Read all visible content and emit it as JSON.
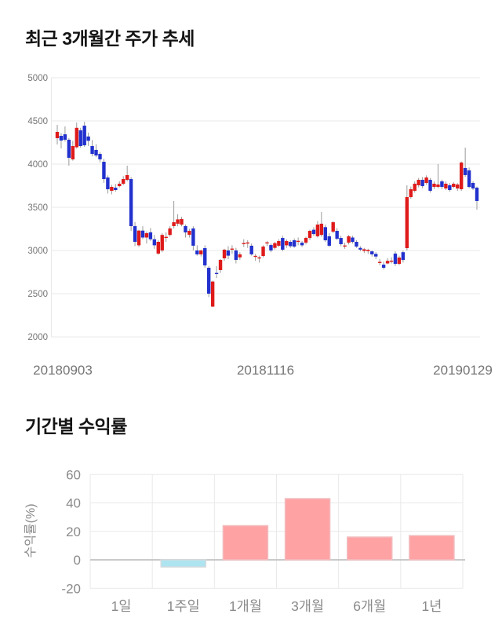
{
  "page": {
    "background": "#ffffff"
  },
  "chart_data": [
    {
      "type": "candlestick",
      "title": "최근 3개월간 주가 추세",
      "x_axis_labels": [
        "20180903",
        "20181116",
        "20190129"
      ],
      "y_ticks": [
        5000,
        4500,
        4000,
        3500,
        3000,
        2500,
        2000
      ],
      "ylim": [
        2000,
        5000
      ],
      "grid": true,
      "legend": "none",
      "colors": {
        "up": "#df1a1a",
        "down": "#2231cd",
        "wick": "#9a9a9a",
        "grid": "#e9e9e9",
        "axis_text": "#757575"
      },
      "candles_ohlc": [
        [
          4300,
          4455,
          4227,
          4373
        ],
        [
          4327,
          4360,
          4182,
          4273
        ],
        [
          4345,
          4436,
          4260,
          4282
        ],
        [
          4282,
          4300,
          3982,
          4073
        ],
        [
          4055,
          4270,
          4040,
          4209
        ],
        [
          4195,
          4482,
          4180,
          4420
        ],
        [
          4391,
          4420,
          4190,
          4209
        ],
        [
          4445,
          4490,
          4200,
          4218
        ],
        [
          4320,
          4365,
          4210,
          4270
        ],
        [
          4209,
          4280,
          4090,
          4118
        ],
        [
          4164,
          4230,
          4080,
          4100
        ],
        [
          4118,
          4140,
          4020,
          4055
        ],
        [
          4027,
          4060,
          3782,
          3827
        ],
        [
          3845,
          3870,
          3660,
          3709
        ],
        [
          3691,
          3760,
          3650,
          3736
        ],
        [
          3727,
          3770,
          3680,
          3700
        ],
        [
          3745,
          3800,
          3730,
          3773
        ],
        [
          3773,
          3860,
          3755,
          3827
        ],
        [
          3818,
          3982,
          3800,
          3873
        ],
        [
          3827,
          3850,
          3227,
          3282
        ],
        [
          3282,
          3330,
          3050,
          3100
        ],
        [
          3060,
          3240,
          3040,
          3230
        ],
        [
          3230,
          3280,
          3130,
          3150
        ],
        [
          3150,
          3220,
          3080,
          3200
        ],
        [
          3210,
          3260,
          3110,
          3130
        ],
        [
          3130,
          3180,
          3020,
          3060
        ],
        [
          2964,
          3120,
          2950,
          3100
        ],
        [
          3000,
          3200,
          2980,
          3180
        ],
        [
          3150,
          3210,
          3100,
          3158
        ],
        [
          3180,
          3280,
          3160,
          3255
        ],
        [
          3282,
          3573,
          3255,
          3327
        ],
        [
          3310,
          3420,
          3280,
          3360
        ],
        [
          3300,
          3390,
          3280,
          3364
        ],
        [
          3282,
          3300,
          3150,
          3209
        ],
        [
          3182,
          3250,
          3150,
          3227
        ],
        [
          3255,
          3280,
          3000,
          3055
        ],
        [
          3000,
          3060,
          2940,
          2955
        ],
        [
          2955,
          3010,
          2930,
          3000
        ],
        [
          3027,
          3060,
          2800,
          2827
        ],
        [
          2800,
          2820,
          2460,
          2500
        ],
        [
          2350,
          2650,
          2345,
          2640
        ],
        [
          2740,
          2820,
          2680,
          2732
        ],
        [
          2773,
          2900,
          2740,
          2891
        ],
        [
          2909,
          3020,
          2880,
          3009
        ],
        [
          3000,
          3050,
          2900,
          2940
        ],
        [
          3014,
          3060,
          2960,
          3022
        ],
        [
          3000,
          3030,
          2850,
          2891
        ],
        [
          2920,
          2980,
          2890,
          2955
        ],
        [
          3078,
          3130,
          3040,
          3086
        ],
        [
          3085,
          3120,
          3030,
          3093
        ],
        [
          3055,
          3080,
          2940,
          2955
        ],
        [
          2930,
          2960,
          2880,
          2938
        ],
        [
          2914,
          2940,
          2860,
          2920
        ],
        [
          2936,
          3060,
          2920,
          3045
        ],
        [
          3086,
          3110,
          3050,
          3094
        ],
        [
          3063,
          3080,
          2980,
          3000
        ],
        [
          3030,
          3100,
          3010,
          3085
        ],
        [
          3055,
          3130,
          3040,
          3109
        ],
        [
          3145,
          3170,
          2990,
          3009
        ],
        [
          3060,
          3130,
          3030,
          3110
        ],
        [
          3100,
          3120,
          3030,
          3050
        ],
        [
          3118,
          3140,
          3030,
          3045
        ],
        [
          3105,
          3150,
          3060,
          3112
        ],
        [
          3090,
          3110,
          3040,
          3060
        ],
        [
          3091,
          3160,
          3070,
          3145
        ],
        [
          3145,
          3240,
          3120,
          3227
        ],
        [
          3240,
          3270,
          3170,
          3190
        ],
        [
          3164,
          3340,
          3150,
          3300
        ],
        [
          3180,
          3445,
          3160,
          3310
        ],
        [
          3270,
          3300,
          3100,
          3118
        ],
        [
          3164,
          3200,
          3040,
          3055
        ],
        [
          3218,
          3340,
          3200,
          3327
        ],
        [
          3227,
          3260,
          3120,
          3136
        ],
        [
          3145,
          3170,
          3050,
          3073
        ],
        [
          3050,
          3090,
          3020,
          3058
        ],
        [
          3091,
          3180,
          3070,
          3164
        ],
        [
          3150,
          3170,
          3080,
          3100
        ],
        [
          3100,
          3120,
          3030,
          3045
        ],
        [
          3030,
          3050,
          2990,
          3010
        ],
        [
          2995,
          3030,
          2970,
          3014
        ],
        [
          2991,
          3020,
          2960,
          3005
        ],
        [
          2990,
          3000,
          2930,
          2955
        ],
        [
          2960,
          2980,
          2900,
          2930
        ],
        [
          2860,
          2900,
          2830,
          2868
        ],
        [
          2836,
          2870,
          2780,
          2800
        ],
        [
          2850,
          2910,
          2840,
          2880
        ],
        [
          2875,
          2920,
          2850,
          2882
        ],
        [
          2964,
          2990,
          2820,
          2845
        ],
        [
          2845,
          2940,
          2830,
          2918
        ],
        [
          2980,
          3000,
          2860,
          2890
        ],
        [
          3027,
          3755,
          3000,
          3618
        ],
        [
          3618,
          3740,
          3600,
          3709
        ],
        [
          3691,
          3800,
          3670,
          3773
        ],
        [
          3755,
          3840,
          3730,
          3818
        ],
        [
          3818,
          3850,
          3720,
          3745
        ],
        [
          3782,
          3870,
          3760,
          3845
        ],
        [
          3818,
          3840,
          3670,
          3691
        ],
        [
          3736,
          3800,
          3710,
          3773
        ],
        [
          3736,
          4000,
          3720,
          3764
        ],
        [
          3800,
          3820,
          3710,
          3736
        ],
        [
          3718,
          3800,
          3700,
          3773
        ],
        [
          3755,
          3780,
          3680,
          3700
        ],
        [
          3736,
          3790,
          3720,
          3773
        ],
        [
          3718,
          3780,
          3690,
          3764
        ],
        [
          3709,
          4030,
          3690,
          4018
        ],
        [
          3955,
          4191,
          3850,
          3873
        ],
        [
          3927,
          3960,
          3720,
          3736
        ],
        [
          3782,
          3800,
          3700,
          3718
        ],
        [
          3727,
          3740,
          3473,
          3573
        ]
      ]
    },
    {
      "type": "bar",
      "title": "기간별 수익률",
      "ylabel": "수익률(%)",
      "categories": [
        "1일",
        "1주일",
        "1개월",
        "3개월",
        "6개월",
        "1년"
      ],
      "values": [
        0,
        -5,
        24,
        43,
        16,
        17
      ],
      "y_ticks": [
        60,
        40,
        20,
        0,
        -20
      ],
      "ylim": [
        -20,
        60
      ],
      "grid": true,
      "legend": "none",
      "colors": {
        "positive": "#ffa2a4",
        "positive_border": "#f2bcbe",
        "negative": "#aee4f0",
        "negative_border": "#d4dadc",
        "grid": "#e9e9e9",
        "zero_line": "#c2c2c2",
        "axis_text": "#8a8a8a"
      }
    }
  ]
}
